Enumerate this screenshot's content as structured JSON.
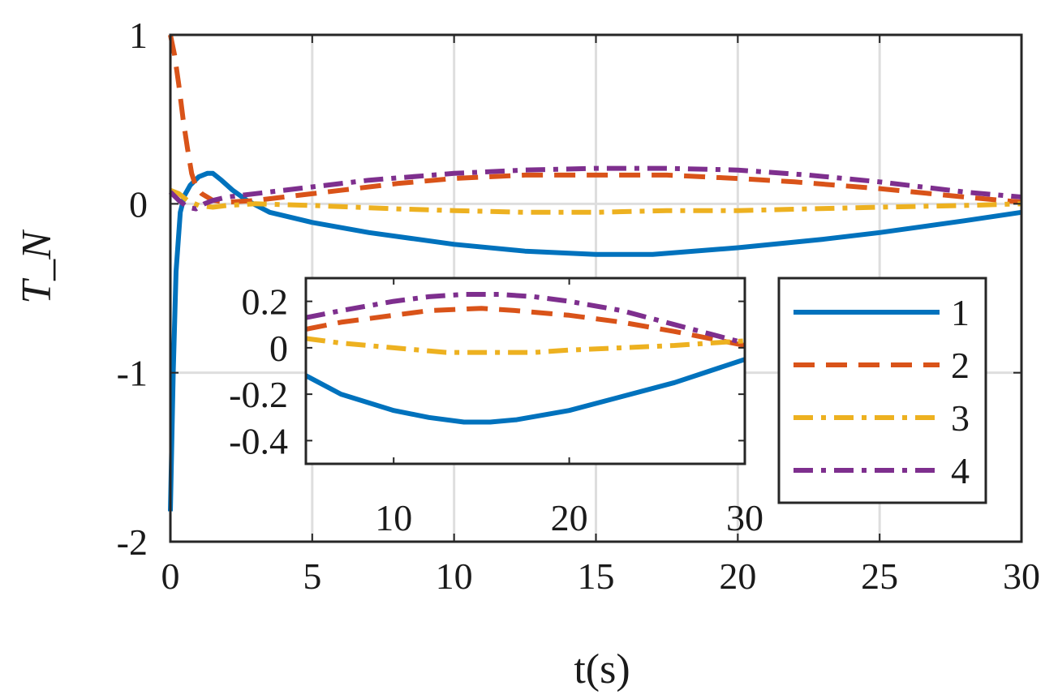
{
  "chart_data": [
    {
      "id": "main",
      "type": "line",
      "title": "",
      "xlabel": "t(s)",
      "ylabel": "T_N",
      "xlim": [
        0,
        30
      ],
      "ylim": [
        -2,
        1
      ],
      "xticks": [
        0,
        5,
        10,
        15,
        20,
        25,
        30
      ],
      "xtick_labels": [
        "0",
        "5",
        "10",
        "15",
        "20",
        "25",
        "30"
      ],
      "yticks": [
        -2,
        -1,
        0,
        1
      ],
      "ytick_labels": [
        "-2",
        "-1",
        "0",
        "1"
      ],
      "grid": true,
      "legend": {
        "position": "lower-right",
        "entries": [
          "1",
          "2",
          "3",
          "4"
        ]
      },
      "series": [
        {
          "name": "1",
          "color": "#0072BD",
          "style": "solid",
          "points": [
            [
              0,
              -1.82
            ],
            [
              0.1,
              -1.0
            ],
            [
              0.2,
              -0.4
            ],
            [
              0.35,
              -0.05
            ],
            [
              0.5,
              0.05
            ],
            [
              0.7,
              0.11
            ],
            [
              1.0,
              0.16
            ],
            [
              1.3,
              0.18
            ],
            [
              1.5,
              0.18
            ],
            [
              1.8,
              0.14
            ],
            [
              2.2,
              0.08
            ],
            [
              2.7,
              0.02
            ],
            [
              3.5,
              -0.05
            ],
            [
              5,
              -0.11
            ],
            [
              7,
              -0.17
            ],
            [
              10,
              -0.24
            ],
            [
              12.5,
              -0.28
            ],
            [
              15,
              -0.3
            ],
            [
              17,
              -0.3
            ],
            [
              20,
              -0.26
            ],
            [
              23,
              -0.21
            ],
            [
              25,
              -0.17
            ],
            [
              28,
              -0.1
            ],
            [
              30,
              -0.05
            ]
          ]
        },
        {
          "name": "2",
          "color": "#D95319",
          "style": "dashed",
          "points": [
            [
              0,
              1.0
            ],
            [
              0.15,
              0.88
            ],
            [
              0.3,
              0.7
            ],
            [
              0.45,
              0.5
            ],
            [
              0.6,
              0.33
            ],
            [
              0.75,
              0.18
            ],
            [
              0.9,
              0.1
            ],
            [
              1.1,
              0.06
            ],
            [
              1.5,
              0.02
            ],
            [
              2,
              0.01
            ],
            [
              3,
              0.02
            ],
            [
              4,
              0.04
            ],
            [
              6,
              0.08
            ],
            [
              8,
              0.12
            ],
            [
              10,
              0.15
            ],
            [
              12.5,
              0.17
            ],
            [
              15,
              0.17
            ],
            [
              17.5,
              0.17
            ],
            [
              20,
              0.15
            ],
            [
              22,
              0.13
            ],
            [
              25,
              0.09
            ],
            [
              28,
              0.04
            ],
            [
              30,
              0.01
            ]
          ]
        },
        {
          "name": "3",
          "color": "#EDB120",
          "style": "dashdot",
          "points": [
            [
              0,
              0.08
            ],
            [
              0.3,
              0.06
            ],
            [
              0.6,
              0.02
            ],
            [
              1,
              -0.01
            ],
            [
              1.5,
              -0.02
            ],
            [
              2,
              -0.01
            ],
            [
              3,
              0.0
            ],
            [
              5,
              -0.01
            ],
            [
              8,
              -0.03
            ],
            [
              10,
              -0.04
            ],
            [
              12.5,
              -0.05
            ],
            [
              15,
              -0.05
            ],
            [
              17.5,
              -0.04
            ],
            [
              20,
              -0.04
            ],
            [
              22.5,
              -0.03
            ],
            [
              25,
              -0.02
            ],
            [
              28,
              -0.01
            ],
            [
              30,
              0.0
            ]
          ]
        },
        {
          "name": "4",
          "color": "#7E2F8E",
          "style": "dashdot",
          "points": [
            [
              0,
              0.07
            ],
            [
              0.3,
              0.02
            ],
            [
              0.6,
              -0.02
            ],
            [
              0.9,
              -0.03
            ],
            [
              1.2,
              0.0
            ],
            [
              1.5,
              0.02
            ],
            [
              2,
              0.04
            ],
            [
              3,
              0.06
            ],
            [
              5,
              0.1
            ],
            [
              7,
              0.14
            ],
            [
              10,
              0.18
            ],
            [
              12.5,
              0.2
            ],
            [
              15,
              0.21
            ],
            [
              17.5,
              0.21
            ],
            [
              20,
              0.2
            ],
            [
              22.5,
              0.17
            ],
            [
              25,
              0.13
            ],
            [
              28,
              0.07
            ],
            [
              30,
              0.04
            ]
          ]
        }
      ]
    },
    {
      "id": "inset",
      "type": "line",
      "xlim": [
        5,
        30
      ],
      "ylim": [
        -0.5,
        0.3
      ],
      "xticks": [
        10,
        20,
        30
      ],
      "xtick_labels": [
        "10",
        "20",
        "30"
      ],
      "yticks": [
        -0.4,
        -0.2,
        0,
        0.2
      ],
      "ytick_labels": [
        "-0.4",
        "-0.2",
        "0",
        "0.2"
      ],
      "grid": false,
      "series": [
        {
          "name": "1",
          "color": "#0072BD",
          "style": "solid",
          "points": [
            [
              5,
              -0.12
            ],
            [
              7,
              -0.2
            ],
            [
              10,
              -0.27
            ],
            [
              12,
              -0.3
            ],
            [
              14,
              -0.32
            ],
            [
              15.5,
              -0.32
            ],
            [
              17,
              -0.31
            ],
            [
              20,
              -0.27
            ],
            [
              23,
              -0.21
            ],
            [
              26,
              -0.15
            ],
            [
              28,
              -0.1
            ],
            [
              30,
              -0.05
            ]
          ]
        },
        {
          "name": "2",
          "color": "#D95319",
          "style": "dashed",
          "points": [
            [
              5,
              0.08
            ],
            [
              7,
              0.11
            ],
            [
              10,
              0.14
            ],
            [
              12,
              0.16
            ],
            [
              15,
              0.17
            ],
            [
              17,
              0.16
            ],
            [
              20,
              0.14
            ],
            [
              23,
              0.11
            ],
            [
              26,
              0.07
            ],
            [
              28,
              0.04
            ],
            [
              30,
              0.01
            ]
          ]
        },
        {
          "name": "3",
          "color": "#EDB120",
          "style": "dashdot",
          "points": [
            [
              5,
              0.04
            ],
            [
              7,
              0.02
            ],
            [
              10,
              0.0
            ],
            [
              13,
              -0.02
            ],
            [
              15,
              -0.02
            ],
            [
              18,
              -0.02
            ],
            [
              20,
              -0.01
            ],
            [
              23,
              0.0
            ],
            [
              26,
              0.01
            ],
            [
              28,
              0.02
            ],
            [
              30,
              0.03
            ]
          ]
        },
        {
          "name": "4",
          "color": "#7E2F8E",
          "style": "dashdot",
          "points": [
            [
              5,
              0.13
            ],
            [
              7,
              0.16
            ],
            [
              10,
              0.2
            ],
            [
              12,
              0.22
            ],
            [
              14,
              0.23
            ],
            [
              16,
              0.23
            ],
            [
              18,
              0.22
            ],
            [
              20,
              0.2
            ],
            [
              23,
              0.16
            ],
            [
              26,
              0.1
            ],
            [
              28,
              0.06
            ],
            [
              30,
              0.02
            ]
          ]
        }
      ]
    }
  ]
}
